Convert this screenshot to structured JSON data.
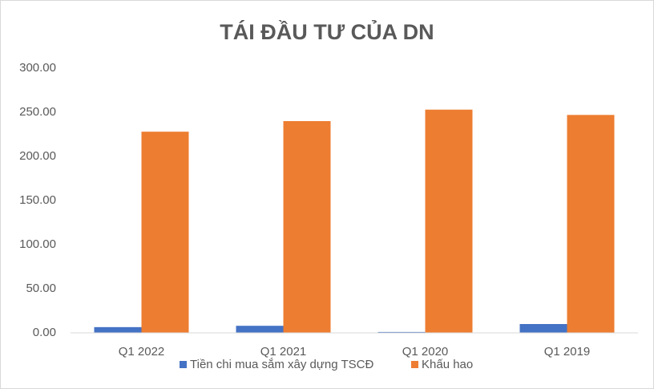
{
  "chart_data": {
    "type": "bar",
    "title": "TÁI ĐẦU TƯ CỦA DN",
    "categories": [
      "Q1 2022",
      "Q1 2021",
      "Q1 2020",
      "Q1 2019"
    ],
    "series": [
      {
        "name": "Tiền chi mua sắm xây dựng TSCĐ",
        "color": "#4472c4",
        "values": [
          6.5,
          8,
          1,
          10
        ]
      },
      {
        "name": "Khấu hao",
        "color": "#ed7d31",
        "values": [
          228,
          240,
          253,
          247
        ]
      }
    ],
    "ylim": [
      0,
      300
    ],
    "yticks": [
      {
        "value": 0,
        "label": "0.00"
      },
      {
        "value": 50,
        "label": "50.00"
      },
      {
        "value": 100,
        "label": "100.00"
      },
      {
        "value": 150,
        "label": "150.00"
      },
      {
        "value": 200,
        "label": "200.00"
      },
      {
        "value": 250,
        "label": "250.00"
      },
      {
        "value": 300,
        "label": "300.00"
      }
    ],
    "grid": false,
    "legend": "bottom"
  }
}
